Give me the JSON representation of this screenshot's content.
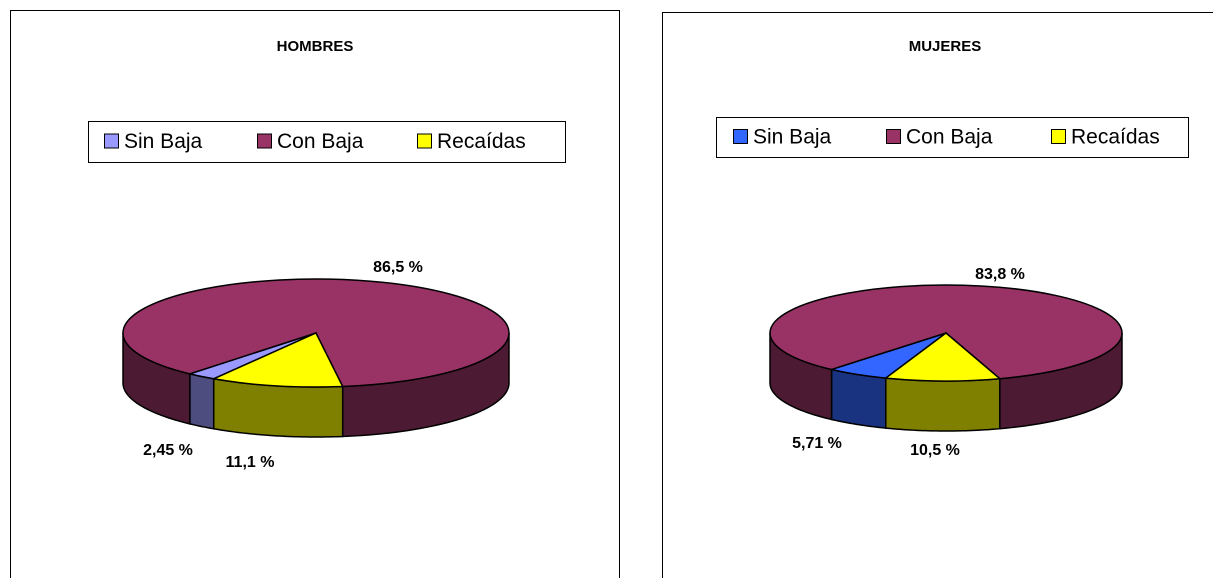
{
  "chart_data": [
    {
      "type": "pie3d",
      "title": "HOMBRES",
      "categories": [
        "Sin Baja",
        "Con Baja",
        "Recaídas"
      ],
      "values": [
        2.45,
        86.5,
        11.1
      ],
      "value_labels": [
        "2,45 %",
        "86,5 %",
        "11,1 %"
      ],
      "colors": [
        "#9999ff",
        "#993366",
        "#ffff00"
      ],
      "legend": "top"
    },
    {
      "type": "pie3d",
      "title": "MUJERES",
      "categories": [
        "Sin Baja",
        "Con Baja",
        "Recaídas"
      ],
      "values": [
        5.71,
        83.8,
        10.5
      ],
      "value_labels": [
        "5,71 %",
        "83,8 %",
        "10,5 %"
      ],
      "colors": [
        "#3366ff",
        "#993366",
        "#ffff00"
      ],
      "legend": "top"
    }
  ]
}
